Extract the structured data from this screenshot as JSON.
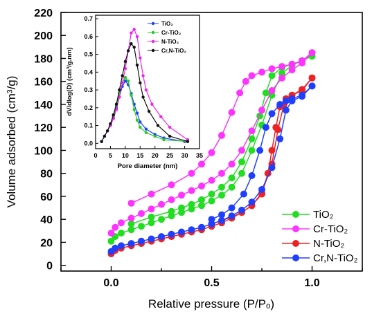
{
  "chart_data": [
    {
      "type": "scatter",
      "title": "",
      "xlabel": "Relative pressure (P/Pₒ)",
      "ylabel": "Volume adsorbed (cm³/g)",
      "xlim": [
        -0.25,
        1.25
      ],
      "ylim": [
        -5,
        220
      ],
      "xticks": [
        "0.0",
        "0.5",
        "1.0"
      ],
      "xtick_values": [
        0,
        0.5,
        1.0
      ],
      "yticks": [
        "0",
        "20",
        "40",
        "60",
        "80",
        "100",
        "120",
        "140",
        "160",
        "180",
        "200",
        "220"
      ],
      "ytick_values": [
        0,
        20,
        40,
        60,
        80,
        100,
        120,
        140,
        160,
        180,
        200,
        220
      ],
      "legend_position": "bottom-right",
      "series": [
        {
          "name": "TiO₂",
          "color": "#22dd22",
          "adsorption": [
            [
              0.0,
              21
            ],
            [
              0.02,
              25
            ],
            [
              0.05,
              28
            ],
            [
              0.1,
              31
            ],
            [
              0.15,
              34
            ],
            [
              0.2,
              37
            ],
            [
              0.25,
              40
            ],
            [
              0.3,
              43
            ],
            [
              0.35,
              46
            ],
            [
              0.4,
              49
            ],
            [
              0.45,
              52
            ],
            [
              0.5,
              56
            ],
            [
              0.55,
              61
            ],
            [
              0.6,
              68
            ],
            [
              0.65,
              80
            ],
            [
              0.7,
              100
            ],
            [
              0.75,
              122
            ],
            [
              0.8,
              148
            ],
            [
              0.85,
              167
            ],
            [
              0.9,
              174
            ],
            [
              0.95,
              178
            ],
            [
              1.0,
              182
            ]
          ],
          "desorption": [
            [
              1.0,
              182
            ],
            [
              0.95,
              178
            ],
            [
              0.9,
              175
            ],
            [
              0.85,
              172
            ],
            [
              0.8,
              165
            ],
            [
              0.77,
              150
            ],
            [
              0.74,
              130
            ],
            [
              0.7,
              110
            ],
            [
              0.65,
              90
            ],
            [
              0.6,
              76
            ],
            [
              0.55,
              68
            ],
            [
              0.5,
              62
            ],
            [
              0.45,
              57
            ],
            [
              0.4,
              53
            ],
            [
              0.35,
              50
            ],
            [
              0.3,
              47
            ],
            [
              0.2,
              42
            ],
            [
              0.1,
              36
            ]
          ]
        },
        {
          "name": "Cr-TiO₂",
          "color": "#ff33ff",
          "adsorption": [
            [
              0.0,
              28
            ],
            [
              0.02,
              33
            ],
            [
              0.05,
              37
            ],
            [
              0.1,
              41
            ],
            [
              0.15,
              45
            ],
            [
              0.2,
              49
            ],
            [
              0.25,
              53
            ],
            [
              0.3,
              57
            ],
            [
              0.35,
              61
            ],
            [
              0.4,
              65
            ],
            [
              0.45,
              69
            ],
            [
              0.5,
              74
            ],
            [
              0.55,
              80
            ],
            [
              0.6,
              88
            ],
            [
              0.65,
              100
            ],
            [
              0.7,
              117
            ],
            [
              0.75,
              135
            ],
            [
              0.8,
              152
            ],
            [
              0.85,
              163
            ],
            [
              0.9,
              170
            ],
            [
              0.95,
              176
            ],
            [
              1.0,
              185
            ]
          ],
          "desorption": [
            [
              1.0,
              185
            ],
            [
              0.95,
              178
            ],
            [
              0.9,
              175
            ],
            [
              0.85,
              173
            ],
            [
              0.8,
              171
            ],
            [
              0.75,
              168
            ],
            [
              0.7,
              165
            ],
            [
              0.67,
              160
            ],
            [
              0.64,
              150
            ],
            [
              0.6,
              133
            ],
            [
              0.55,
              113
            ],
            [
              0.5,
              98
            ],
            [
              0.45,
              88
            ],
            [
              0.4,
              80
            ],
            [
              0.3,
              70
            ],
            [
              0.2,
              62
            ],
            [
              0.1,
              54
            ]
          ]
        },
        {
          "name": "N-TiO₂",
          "color": "#ee2222",
          "adsorption": [
            [
              0.0,
              10
            ],
            [
              0.02,
              13
            ],
            [
              0.05,
              15
            ],
            [
              0.1,
              17
            ],
            [
              0.15,
              19
            ],
            [
              0.2,
              21
            ],
            [
              0.25,
              23
            ],
            [
              0.3,
              25
            ],
            [
              0.35,
              27
            ],
            [
              0.4,
              29
            ],
            [
              0.45,
              31
            ],
            [
              0.5,
              34
            ],
            [
              0.55,
              37
            ],
            [
              0.6,
              41
            ],
            [
              0.65,
              46
            ],
            [
              0.7,
              52
            ],
            [
              0.75,
              63
            ],
            [
              0.8,
              88
            ],
            [
              0.83,
              118
            ],
            [
              0.86,
              140
            ],
            [
              0.9,
              148
            ],
            [
              0.95,
              153
            ],
            [
              1.0,
              163
            ]
          ],
          "desorption": [
            [
              1.0,
              163
            ],
            [
              0.95,
              152
            ],
            [
              0.9,
              148
            ],
            [
              0.87,
              145
            ],
            [
              0.84,
              138
            ],
            [
              0.82,
              120
            ],
            [
              0.8,
              100
            ],
            [
              0.78,
              80
            ],
            [
              0.75,
              62
            ],
            [
              0.7,
              52
            ],
            [
              0.65,
              46
            ],
            [
              0.6,
              42
            ],
            [
              0.5,
              36
            ]
          ]
        },
        {
          "name": "Cr,N-TiO₂",
          "color": "#1f3fff",
          "adsorption": [
            [
              0.0,
              12
            ],
            [
              0.02,
              15
            ],
            [
              0.05,
              17
            ],
            [
              0.1,
              19
            ],
            [
              0.15,
              21
            ],
            [
              0.2,
              23
            ],
            [
              0.25,
              25
            ],
            [
              0.3,
              27
            ],
            [
              0.35,
              29
            ],
            [
              0.4,
              31
            ],
            [
              0.45,
              33
            ],
            [
              0.5,
              36
            ],
            [
              0.55,
              39
            ],
            [
              0.6,
              43
            ],
            [
              0.65,
              48
            ],
            [
              0.7,
              55
            ],
            [
              0.75,
              66
            ],
            [
              0.8,
              85
            ],
            [
              0.84,
              110
            ],
            [
              0.87,
              135
            ],
            [
              0.9,
              143
            ],
            [
              0.95,
              147
            ],
            [
              1.0,
              156
            ]
          ],
          "desorption": [
            [
              1.0,
              156
            ],
            [
              0.95,
              148
            ],
            [
              0.9,
              145
            ],
            [
              0.87,
              143
            ],
            [
              0.84,
              140
            ],
            [
              0.8,
              132
            ],
            [
              0.77,
              120
            ],
            [
              0.74,
              100
            ],
            [
              0.7,
              78
            ],
            [
              0.66,
              62
            ],
            [
              0.6,
              50
            ],
            [
              0.55,
              44
            ],
            [
              0.5,
              40
            ]
          ]
        }
      ]
    },
    {
      "type": "line",
      "title": "",
      "xlabel": "Pore diameter (nm)",
      "ylabel": "dV/dlog(D) (cm³/g.nm)",
      "xlim": [
        0,
        35
      ],
      "ylim": [
        -0.03,
        0.72
      ],
      "xticks": [
        "0",
        "5",
        "10",
        "15",
        "20",
        "25",
        "30",
        "35"
      ],
      "xtick_values": [
        0,
        5,
        10,
        15,
        20,
        25,
        30,
        35
      ],
      "yticks": [
        "0.0",
        "0.1",
        "0.2",
        "0.3",
        "0.4",
        "0.5",
        "0.6",
        "0.7"
      ],
      "ytick_values": [
        0.0,
        0.1,
        0.2,
        0.3,
        0.4,
        0.5,
        0.6,
        0.7
      ],
      "legend_position": "top-right",
      "series": [
        {
          "name": "TiO₂",
          "color": "#1f3fff",
          "points": [
            [
              2,
              0.01
            ],
            [
              3,
              0.04
            ],
            [
              4,
              0.07
            ],
            [
              5,
              0.1
            ],
            [
              6,
              0.14
            ],
            [
              7,
              0.2
            ],
            [
              8,
              0.26
            ],
            [
              9,
              0.32
            ],
            [
              10,
              0.35
            ],
            [
              11,
              0.33
            ],
            [
              12,
              0.28
            ],
            [
              13,
              0.22
            ],
            [
              14,
              0.17
            ],
            [
              15,
              0.12
            ],
            [
              17,
              0.08
            ],
            [
              20,
              0.05
            ],
            [
              23,
              0.03
            ],
            [
              30,
              0.01
            ]
          ]
        },
        {
          "name": "Cr-TiO₂",
          "color": "#22cc22",
          "points": [
            [
              2,
              0.01
            ],
            [
              3,
              0.04
            ],
            [
              4,
              0.07
            ],
            [
              5,
              0.11
            ],
            [
              6,
              0.15
            ],
            [
              7,
              0.21
            ],
            [
              8,
              0.28
            ],
            [
              9,
              0.34
            ],
            [
              10,
              0.37
            ],
            [
              11,
              0.35
            ],
            [
              12,
              0.27
            ],
            [
              13,
              0.19
            ],
            [
              14,
              0.13
            ],
            [
              15,
              0.09
            ],
            [
              17,
              0.06
            ],
            [
              20,
              0.04
            ],
            [
              23,
              0.02
            ],
            [
              31,
              0.01
            ]
          ]
        },
        {
          "name": "N-TiO₂",
          "color": "#ee22ee",
          "points": [
            [
              2,
              0.01
            ],
            [
              3,
              0.04
            ],
            [
              4,
              0.07
            ],
            [
              5,
              0.1
            ],
            [
              6,
              0.14
            ],
            [
              7,
              0.19
            ],
            [
              8,
              0.26
            ],
            [
              9,
              0.34
            ],
            [
              10,
              0.42
            ],
            [
              11,
              0.52
            ],
            [
              12,
              0.62
            ],
            [
              13,
              0.64
            ],
            [
              14,
              0.6
            ],
            [
              15,
              0.48
            ],
            [
              16,
              0.38
            ],
            [
              17,
              0.3
            ],
            [
              19,
              0.22
            ],
            [
              22,
              0.15
            ],
            [
              25,
              0.09
            ],
            [
              31,
              0.02
            ]
          ]
        },
        {
          "name": "Cr,N-TiO₂",
          "color": "#111111",
          "points": [
            [
              2,
              0.01
            ],
            [
              3,
              0.04
            ],
            [
              4,
              0.07
            ],
            [
              5,
              0.11
            ],
            [
              6,
              0.16
            ],
            [
              7,
              0.22
            ],
            [
              8,
              0.3
            ],
            [
              9,
              0.38
            ],
            [
              10,
              0.46
            ],
            [
              11,
              0.52
            ],
            [
              12,
              0.56
            ],
            [
              13,
              0.54
            ],
            [
              14,
              0.44
            ],
            [
              15,
              0.34
            ],
            [
              16,
              0.26
            ],
            [
              18,
              0.18
            ],
            [
              21,
              0.1
            ],
            [
              25,
              0.04
            ],
            [
              31,
              0.01
            ]
          ]
        }
      ]
    }
  ]
}
